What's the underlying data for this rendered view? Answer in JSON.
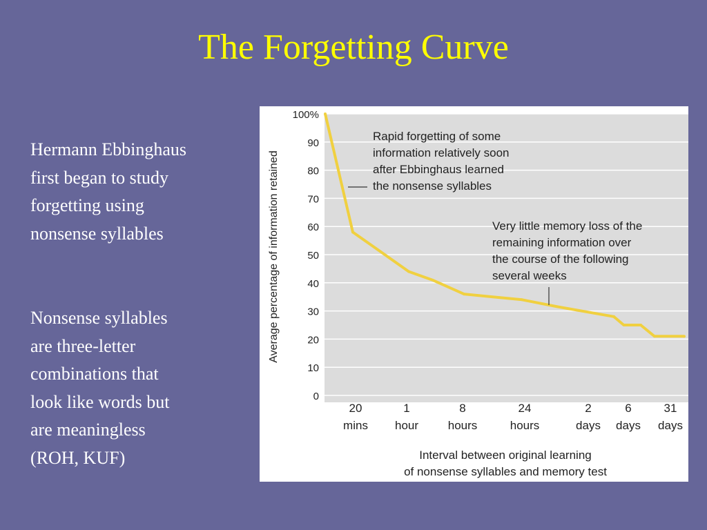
{
  "slide": {
    "title": "The Forgetting Curve",
    "paragraphs": [
      [
        "Hermann Ebbinghaus",
        "first began to study",
        "forgetting using",
        "nonsense syllables"
      ],
      [
        "Nonsense syllables",
        "are three-letter",
        "combinations that",
        "look like words but",
        "are meaningless",
        "(ROH, KUF)"
      ]
    ]
  },
  "colors": {
    "background": "#666699",
    "title": "#ffff00",
    "body_text": "#ffffff",
    "plot_background": "#dcdcdc",
    "curve": "#f0d040"
  },
  "chart_data": {
    "type": "line",
    "title": "",
    "ylabel": "Average percentage of information retained",
    "xlabel_lines": [
      "Interval between original learning",
      "of nonsense syllables and memory test"
    ],
    "ylim": [
      0,
      100
    ],
    "y_ticks": [
      "0",
      "10",
      "20",
      "30",
      "40",
      "50",
      "60",
      "70",
      "80",
      "90",
      "100%"
    ],
    "grid": "horizontal",
    "categories": [
      [
        "20",
        "mins"
      ],
      [
        "1",
        "hour"
      ],
      [
        "8",
        "hours"
      ],
      [
        "24",
        "hours"
      ],
      [
        "2",
        "days"
      ],
      [
        "6",
        "days"
      ],
      [
        "31",
        "days"
      ]
    ],
    "series": [
      {
        "x": [
          0,
          20,
          60,
          480,
          1440,
          2880,
          8640,
          44640
        ],
        "y": [
          100,
          58,
          44,
          36,
          34,
          28,
          25,
          21
        ]
      }
    ],
    "annotations": [
      {
        "lines": [
          "Rapid forgetting of some",
          "information relatively soon",
          "after Ebbinghaus learned",
          "the nonsense syllables"
        ]
      },
      {
        "lines": [
          "Very little memory loss of the",
          "remaining information over",
          "the course of the following",
          "several weeks"
        ]
      }
    ]
  }
}
